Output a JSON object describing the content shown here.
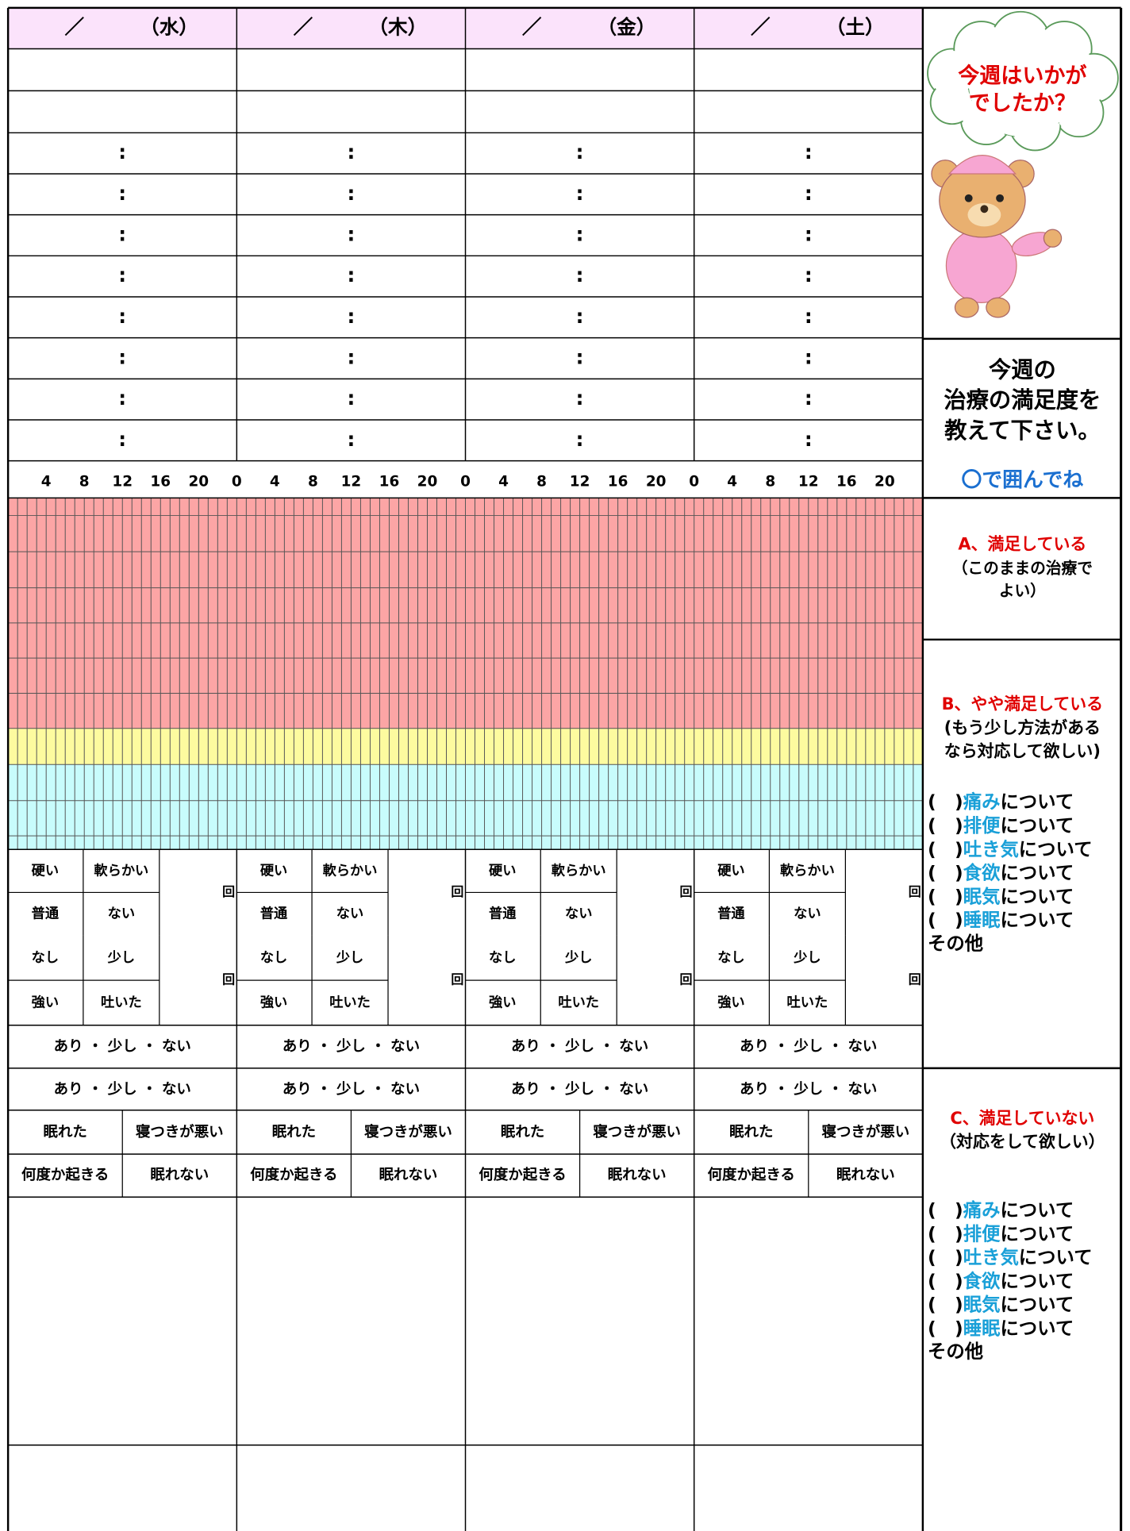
{
  "days": [
    {
      "slash": "／",
      "day": "（水）"
    },
    {
      "slash": "／",
      "day": "（木）"
    },
    {
      "slash": "／",
      "day": "（金）"
    },
    {
      "slash": "／",
      "day": "（土）"
    }
  ],
  "time_separator": ":",
  "hour_labels": [
    4,
    8,
    12,
    16,
    20,
    0,
    4,
    8,
    12,
    16,
    20,
    0,
    4,
    8,
    12,
    16,
    20,
    0,
    4,
    8,
    12,
    16,
    20
  ],
  "stool": {
    "options": [
      "硬い",
      "軟らかい",
      "普通",
      "ない"
    ],
    "count_unit": "回"
  },
  "nausea": {
    "options": [
      "なし",
      "少し",
      "強い",
      "吐いた"
    ],
    "count_unit": "回"
  },
  "level_choices": "あり ・ 少し ・ ない",
  "sleep": [
    "眠れた",
    "寝つきが悪い",
    "何度か起きる",
    "眠れない"
  ],
  "side": {
    "bubble": [
      "今週はいかが",
      "でしたか？"
    ],
    "question": [
      "今週の",
      "治療の満足度を",
      "教えて下さい。"
    ],
    "hint": "〇で囲んでね",
    "a": {
      "title": "A、満足している",
      "note": [
        "（このままの治療で",
        "よい）"
      ]
    },
    "b": {
      "title": "B、やや満足している",
      "note": [
        "(もう少し方法がある",
        "なら対応して欲しい)"
      ],
      "items": [
        {
          "blank": "(　)",
          "topic": "痛み",
          "suffix": "について"
        },
        {
          "blank": "(　)",
          "topic": "排便",
          "suffix": "について"
        },
        {
          "blank": "(　)",
          "topic": "吐き気",
          "suffix": "について"
        },
        {
          "blank": "(　)",
          "topic": "食欲",
          "suffix": "について"
        },
        {
          "blank": "(　)",
          "topic": "眠気",
          "suffix": "について"
        },
        {
          "blank": "(　)",
          "topic": "睡眠",
          "suffix": "について"
        }
      ],
      "other": "その他"
    },
    "c": {
      "title": "C、満足していない",
      "note": [
        "（対応をして欲しい）"
      ],
      "items": [
        {
          "blank": "(　)",
          "topic": "痛み",
          "suffix": "について"
        },
        {
          "blank": "(　)",
          "topic": "排便",
          "suffix": "について"
        },
        {
          "blank": "(　)",
          "topic": "吐き気",
          "suffix": "について"
        },
        {
          "blank": "(　)",
          "topic": "食欲",
          "suffix": "について"
        },
        {
          "blank": "(　)",
          "topic": "眠気",
          "suffix": "について"
        },
        {
          "blank": "(　)",
          "topic": "睡眠",
          "suffix": "について"
        }
      ],
      "other": "その他"
    }
  }
}
